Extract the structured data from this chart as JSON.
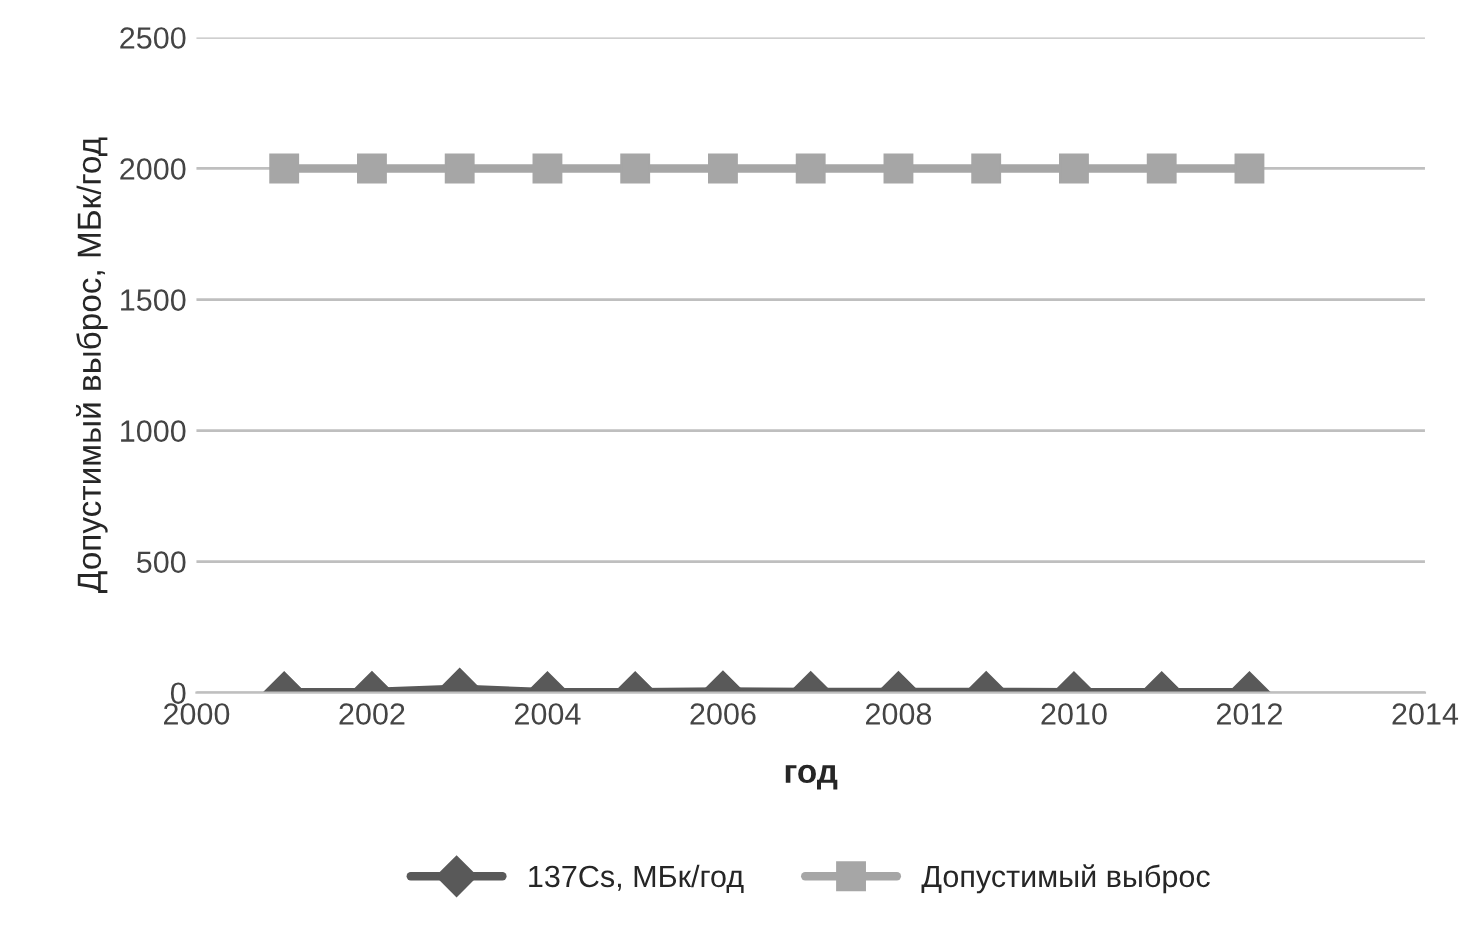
{
  "chart_data": {
    "type": "line",
    "xlabel": "год",
    "ylabel": "Допустимый выброс, МБк/год",
    "x": [
      2001,
      2002,
      2003,
      2004,
      2005,
      2006,
      2007,
      2008,
      2009,
      2010,
      2011,
      2012
    ],
    "series": [
      {
        "name": "137Cs, МБк/год",
        "color": "#595959",
        "marker": "diamond",
        "values": [
          2,
          3,
          15,
          2,
          2,
          5,
          3,
          3,
          3,
          2,
          2,
          2
        ]
      },
      {
        "name": "Допустимый выброс",
        "color": "#a6a6a6",
        "marker": "square",
        "values": [
          2000,
          2000,
          2000,
          2000,
          2000,
          2000,
          2000,
          2000,
          2000,
          2000,
          2000,
          2000
        ]
      }
    ],
    "xlim": [
      2000,
      2014
    ],
    "xticks": [
      2000,
      2002,
      2004,
      2006,
      2008,
      2010,
      2012,
      2014
    ],
    "ylim": [
      0,
      2500
    ],
    "yticks": [
      0,
      500,
      1000,
      1500,
      2000,
      2500
    ],
    "grid": "y",
    "legend": "bottom"
  }
}
